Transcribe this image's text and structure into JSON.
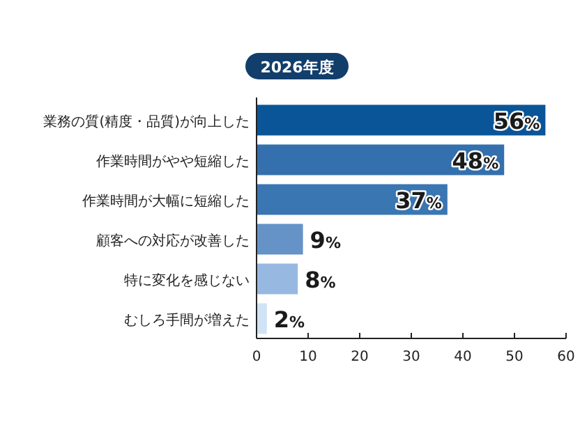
{
  "chart_data": {
    "type": "bar",
    "orientation": "horizontal",
    "title": "2026年度",
    "categories": [
      "業務の質(精度・品質)が向上した",
      "作業時間がやや短縮した",
      "作業時間が大幅に短縮した",
      "顧客への対応が改善した",
      "特に変化を感じない",
      "むしろ手間が増えた"
    ],
    "values": [
      56,
      48,
      37,
      9,
      8,
      2
    ],
    "colors": [
      "#0a5598",
      "#3470ad",
      "#3a76b2",
      "#6593c8",
      "#97b8e0",
      "#cfe3f5"
    ],
    "value_labels": [
      "56%",
      "48%",
      "37%",
      "9%",
      "8%",
      "2%"
    ],
    "xlim": [
      0,
      60
    ],
    "xticks": [
      0,
      10,
      20,
      30,
      40,
      50,
      60
    ],
    "grid": false
  }
}
